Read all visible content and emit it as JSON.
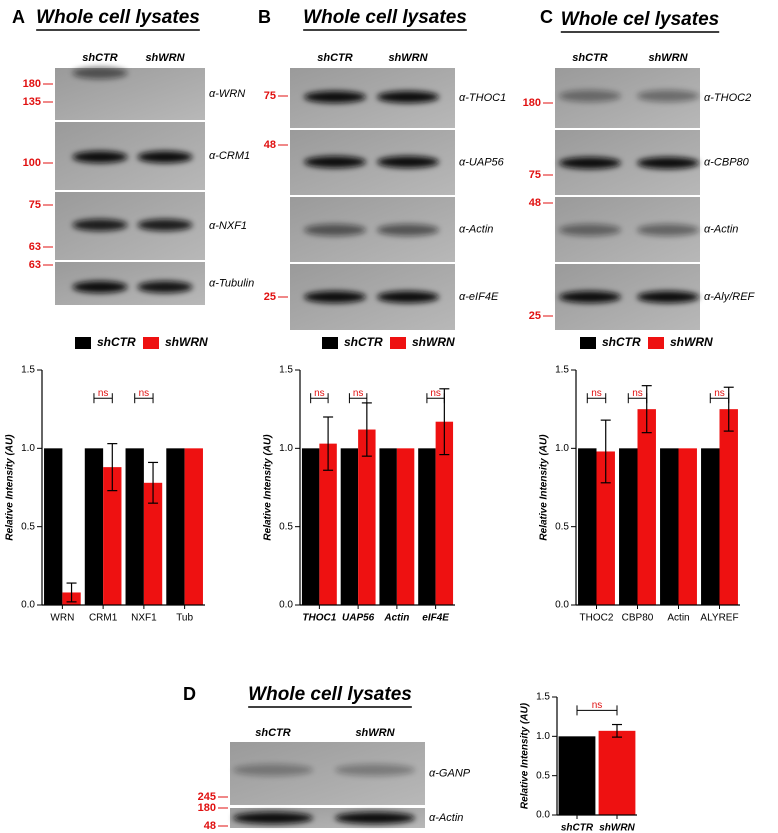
{
  "panels": [
    {
      "label": "A",
      "title": "Whole cell lysates",
      "lanes": [
        "shCTR",
        "shWRN"
      ],
      "blots": [
        {
          "markers": [
            180,
            135
          ],
          "antibody": "α-WRN"
        },
        {
          "markers": [
            100
          ],
          "antibody": "α-CRM1"
        },
        {
          "markers": [
            75,
            63
          ],
          "antibody": "α-NXF1"
        },
        {
          "markers": [
            63
          ],
          "antibody": "α-Tubulin"
        }
      ]
    },
    {
      "label": "B",
      "title": "Whole cell lysates",
      "lanes": [
        "shCTR",
        "shWRN"
      ],
      "blots": [
        {
          "markers": [
            75
          ],
          "antibody": "α-THOC1"
        },
        {
          "markers": [
            48
          ],
          "antibody": "α-UAP56"
        },
        {
          "markers": [],
          "antibody": "α-Actin"
        },
        {
          "markers": [
            25
          ],
          "antibody": "α-eIF4E"
        }
      ]
    },
    {
      "label": "C",
      "title": "Whole cel lysates",
      "lanes": [
        "shCTR",
        "shWRN"
      ],
      "blots": [
        {
          "markers": [
            180
          ],
          "antibody": "α-THOC2"
        },
        {
          "markers": [
            75
          ],
          "antibody": "α-CBP80"
        },
        {
          "markers": [
            48
          ],
          "antibody": "α-Actin"
        },
        {
          "markers": [
            25
          ],
          "antibody": "α-Aly/REF"
        }
      ]
    },
    {
      "label": "D",
      "title": "Whole cell lysates",
      "lanes": [
        "shCTR",
        "shWRN"
      ],
      "blots": [
        {
          "markers": [
            245
          ],
          "antibody": "α-GANP"
        },
        {
          "markers": [
            180,
            48
          ],
          "antibody": "α-Actin"
        }
      ]
    }
  ],
  "chart_data": [
    {
      "type": "bar",
      "categories": [
        "WRN",
        "CRM1",
        "NXF1",
        "Tub"
      ],
      "ylabel": "Relative Intensity (AU)",
      "ylim": [
        0,
        1.5
      ],
      "yticks": [
        {
          "value": 0,
          "label": "0.0"
        },
        {
          "value": 0.5,
          "label": "0.5"
        },
        {
          "value": 1,
          "label": "1.0"
        },
        {
          "value": 1.5,
          "label": "1.5"
        }
      ],
      "legend": true,
      "italic_categories": false,
      "series": [
        {
          "name": "shCTR",
          "color": "#000000",
          "values": [
            1,
            1,
            1,
            1
          ]
        },
        {
          "name": "shWRN",
          "color": "#ee1111",
          "values": [
            0.08,
            0.88,
            0.78,
            1
          ],
          "errors": [
            0.06,
            0.15,
            0.13,
            null
          ]
        }
      ],
      "ns_labels": [
        null,
        "ns",
        "ns",
        null
      ]
    },
    {
      "type": "bar",
      "categories": [
        "THOC1",
        "UAP56",
        "Actin",
        "eIF4E"
      ],
      "ylabel": "Relative Intensity (AU)",
      "ylim": [
        0,
        1.5
      ],
      "yticks": [
        {
          "value": 0,
          "label": "0.0"
        },
        {
          "value": 0.5,
          "label": "0.5"
        },
        {
          "value": 1,
          "label": "1.0"
        },
        {
          "value": 1.5,
          "label": "1.5"
        }
      ],
      "legend": true,
      "italic_categories": true,
      "series": [
        {
          "name": "shCTR",
          "color": "#000000",
          "values": [
            1,
            1,
            1,
            1
          ]
        },
        {
          "name": "shWRN",
          "color": "#ee1111",
          "values": [
            1.03,
            1.12,
            1,
            1.17
          ],
          "errors": [
            0.17,
            0.17,
            null,
            0.21
          ]
        }
      ],
      "ns_labels": [
        "ns",
        "ns",
        null,
        "ns"
      ]
    },
    {
      "type": "bar",
      "categories": [
        "THOC2",
        "CBP80",
        "Actin",
        "ALYREF"
      ],
      "ylabel": "Relative Intensity (AU)",
      "ylim": [
        0,
        1.5
      ],
      "yticks": [
        {
          "value": 0,
          "label": "0.0"
        },
        {
          "value": 0.5,
          "label": "0.5"
        },
        {
          "value": 1,
          "label": "1.0"
        },
        {
          "value": 1.5,
          "label": "1.5"
        }
      ],
      "legend": true,
      "italic_categories": false,
      "series": [
        {
          "name": "shCTR",
          "color": "#000000",
          "values": [
            1,
            1,
            1,
            1
          ]
        },
        {
          "name": "shWRN",
          "color": "#ee1111",
          "values": [
            0.98,
            1.25,
            1,
            1.25
          ],
          "errors": [
            0.2,
            0.15,
            null,
            0.14
          ]
        }
      ],
      "ns_labels": [
        "ns",
        "ns",
        null,
        "ns"
      ]
    },
    {
      "type": "bar",
      "categories": [
        "shCTR",
        "shWRN"
      ],
      "ylabel": "Relative Intensity (AU)",
      "ylim": [
        0,
        1.5
      ],
      "yticks": [
        {
          "value": 0,
          "label": "0.0"
        },
        {
          "value": 0.5,
          "label": "0.5"
        },
        {
          "value": 1,
          "label": "1.0"
        },
        {
          "value": 1.5,
          "label": "1.5"
        }
      ],
      "legend": false,
      "italic_categories": true,
      "values": [
        1,
        1.07
      ],
      "colors": [
        "#000000",
        "#ee1111"
      ],
      "errors": [
        null,
        0.08
      ],
      "comparison_label": "ns"
    }
  ]
}
